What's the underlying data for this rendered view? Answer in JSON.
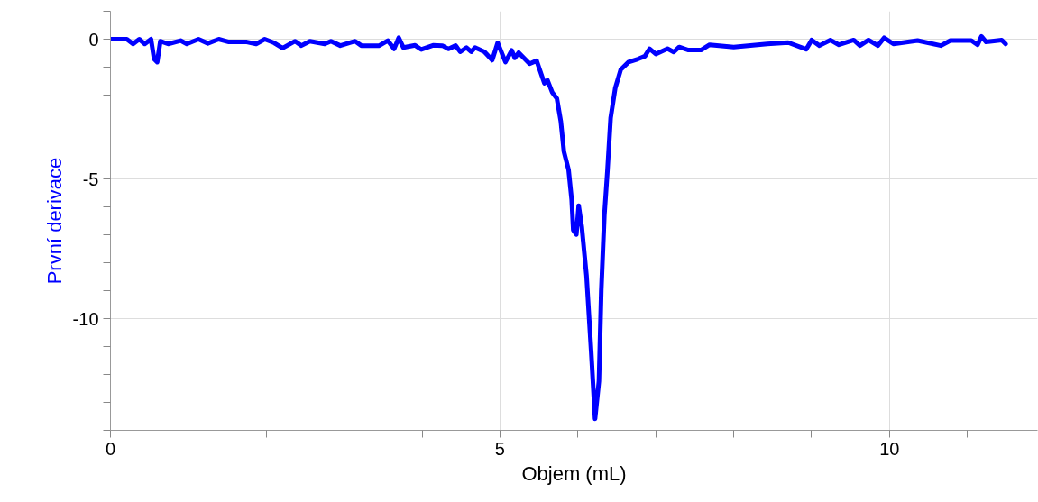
{
  "chart_data": {
    "type": "line",
    "xlabel": "Objem (mL)",
    "ylabel": "První derivace",
    "xlim": [
      0,
      11.9
    ],
    "ylim": [
      -14,
      1
    ],
    "xticks": [
      0,
      {
        "value": 1,
        "label": null
      },
      {
        "value": 2,
        "label": null
      },
      {
        "value": 3,
        "label": null
      },
      {
        "value": 4,
        "label": null
      },
      5,
      {
        "value": 6,
        "label": null
      },
      {
        "value": 7,
        "label": null
      },
      {
        "value": 8,
        "label": null
      },
      {
        "value": 9,
        "label": null
      },
      10,
      {
        "value": 11,
        "label": null
      }
    ],
    "yticks": [
      {
        "value": -14,
        "label": null
      },
      {
        "value": -13,
        "label": null
      },
      {
        "value": -12,
        "label": null
      },
      {
        "value": -11,
        "label": null
      },
      -10,
      {
        "value": -9,
        "label": null
      },
      {
        "value": -8,
        "label": null
      },
      {
        "value": -7,
        "label": null
      },
      {
        "value": -6,
        "label": null
      },
      -5,
      {
        "value": -4,
        "label": null
      },
      {
        "value": -3,
        "label": null
      },
      {
        "value": -2,
        "label": null
      },
      {
        "value": -1,
        "label": null
      },
      0,
      {
        "value": 1,
        "label": null
      }
    ],
    "grid": true,
    "marker": "none",
    "line_style": "solid",
    "series": [
      {
        "color": "#0000ff",
        "x": [
          0,
          0.21,
          0.29,
          0.37,
          0.44,
          0.52,
          0.56,
          0.6,
          0.64,
          0.74,
          0.9,
          0.98,
          1.13,
          1.25,
          1.39,
          1.52,
          1.75,
          1.87,
          1.98,
          2.1,
          2.21,
          2.37,
          2.45,
          2.56,
          2.75,
          2.83,
          2.95,
          3.14,
          3.22,
          3.45,
          3.56,
          3.64,
          3.7,
          3.76,
          3.91,
          3.99,
          4.14,
          4.26,
          4.34,
          4.43,
          4.49,
          4.57,
          4.63,
          4.68,
          4.8,
          4.9,
          4.97,
          5.07,
          5.15,
          5.19,
          5.24,
          5.38,
          5.47,
          5.57,
          5.61,
          5.67,
          5.73,
          5.78,
          5.82,
          5.88,
          5.92,
          5.94,
          5.98,
          6.01,
          6.05,
          6.11,
          6.17,
          6.22,
          6.27,
          6.3,
          6.34,
          6.38,
          6.42,
          6.48,
          6.55,
          6.65,
          6.77,
          6.86,
          6.92,
          7.0,
          7.15,
          7.23,
          7.3,
          7.42,
          7.58,
          7.69,
          8.0,
          8.43,
          8.7,
          8.93,
          9.0,
          9.1,
          9.24,
          9.35,
          9.54,
          9.62,
          9.73,
          9.85,
          9.93,
          10.05,
          10.36,
          10.66,
          10.78,
          11.05,
          11.13,
          11.18,
          11.24,
          11.44,
          11.49
        ],
        "values": [
          0,
          0,
          -0.17,
          0,
          -0.17,
          0,
          -0.71,
          -0.82,
          -0.07,
          -0.17,
          -0.05,
          -0.17,
          0,
          -0.15,
          0,
          -0.1,
          -0.1,
          -0.17,
          0,
          -0.13,
          -0.32,
          -0.07,
          -0.23,
          -0.07,
          -0.17,
          -0.07,
          -0.23,
          -0.07,
          -0.23,
          -0.23,
          -0.05,
          -0.35,
          0.05,
          -0.3,
          -0.22,
          -0.37,
          -0.22,
          -0.23,
          -0.35,
          -0.23,
          -0.45,
          -0.3,
          -0.45,
          -0.3,
          -0.45,
          -0.75,
          -0.13,
          -0.82,
          -0.4,
          -0.67,
          -0.48,
          -0.88,
          -0.77,
          -1.58,
          -1.47,
          -1.9,
          -2.12,
          -2.93,
          -4.02,
          -4.67,
          -5.75,
          -6.83,
          -6.99,
          -5.96,
          -6.72,
          -8.45,
          -11.16,
          -13.59,
          -12.24,
          -8.99,
          -6.29,
          -4.67,
          -2.82,
          -1.74,
          -1.09,
          -0.82,
          -0.71,
          -0.61,
          -0.34,
          -0.53,
          -0.34,
          -0.46,
          -0.28,
          -0.39,
          -0.39,
          -0.2,
          -0.28,
          -0.17,
          -0.12,
          -0.36,
          -0.03,
          -0.23,
          -0.03,
          -0.2,
          -0.03,
          -0.23,
          -0.03,
          -0.23,
          0.05,
          -0.17,
          -0.05,
          -0.23,
          -0.05,
          -0.05,
          -0.2,
          0.1,
          -0.1,
          -0.03,
          -0.17
        ]
      }
    ]
  }
}
